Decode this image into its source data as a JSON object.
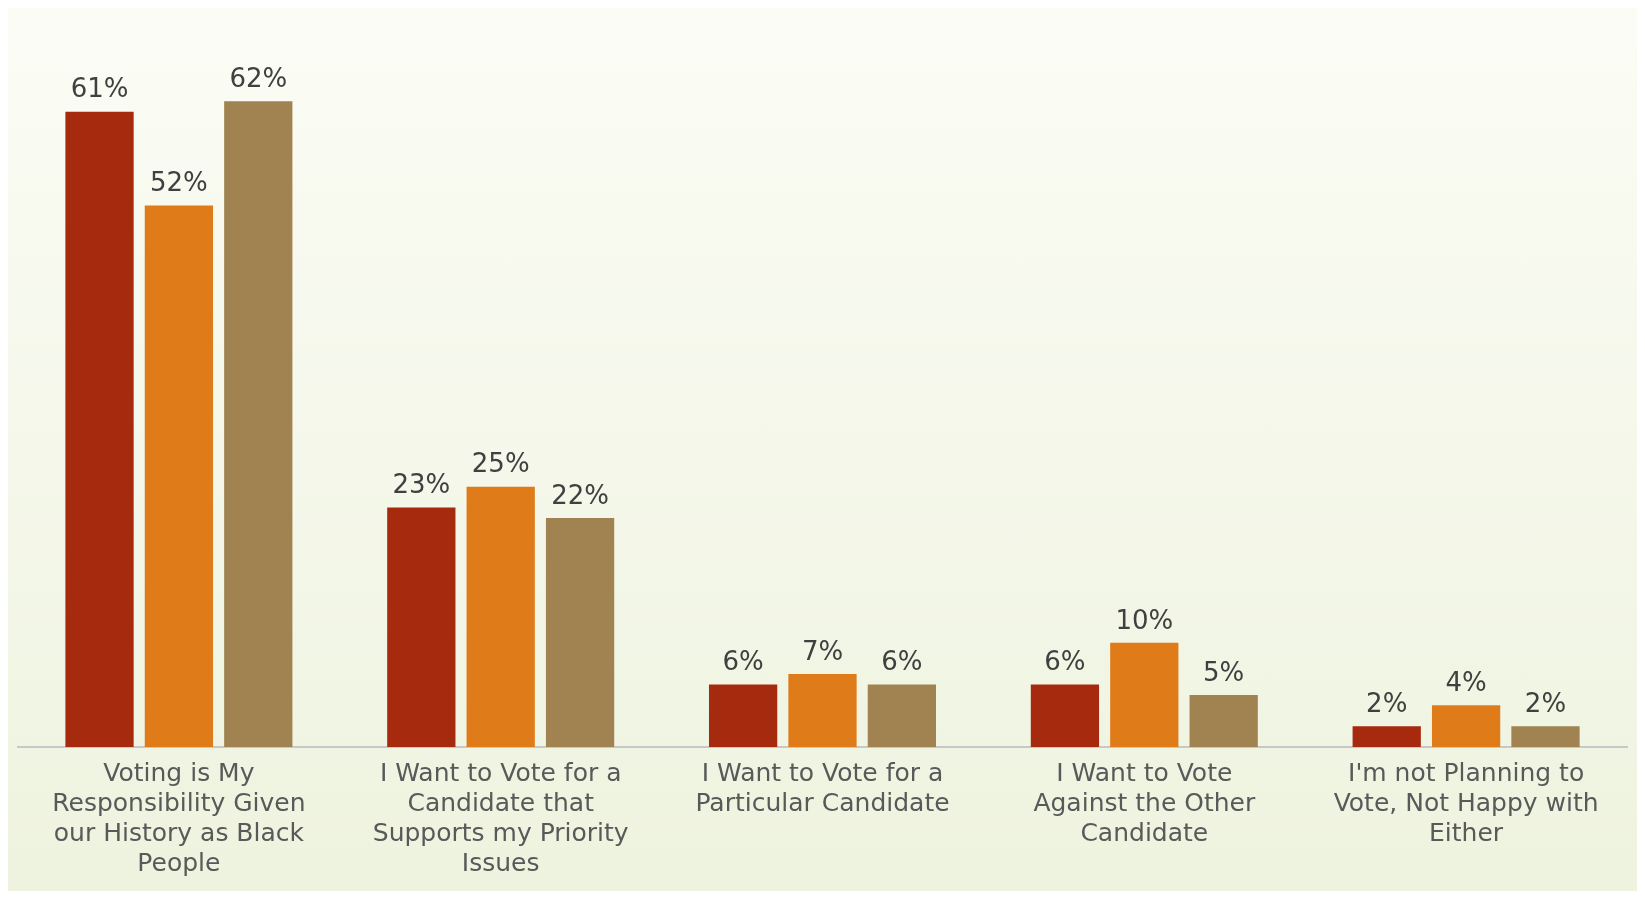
{
  "chart_data": {
    "type": "bar",
    "categories": [
      "Voting is My Responsibility Given our History as Black People",
      "I Want to Vote for a Candidate that Supports my Priority Issues",
      "I Want to Vote for a Particular Candidate",
      "I Want to Vote Against the Other Candidate",
      "I'm not Planning to Vote, Not Happy with Either"
    ],
    "series": [
      {
        "color": "#a52a0e",
        "values": [
          61,
          23,
          6,
          6,
          2
        ],
        "value_labels": [
          "61%",
          "23%",
          "6%",
          "6%",
          "2%"
        ]
      },
      {
        "color": "#e07b1a",
        "values": [
          52,
          25,
          7,
          10,
          4
        ],
        "value_labels": [
          "52%",
          "25%",
          "7%",
          "10%",
          "4%"
        ]
      },
      {
        "color": "#a08350",
        "values": [
          62,
          22,
          6,
          5,
          2
        ],
        "value_labels": [
          "62%",
          "22%",
          "6%",
          "5%",
          "2%"
        ]
      }
    ],
    "grid": false,
    "legend": false
  }
}
